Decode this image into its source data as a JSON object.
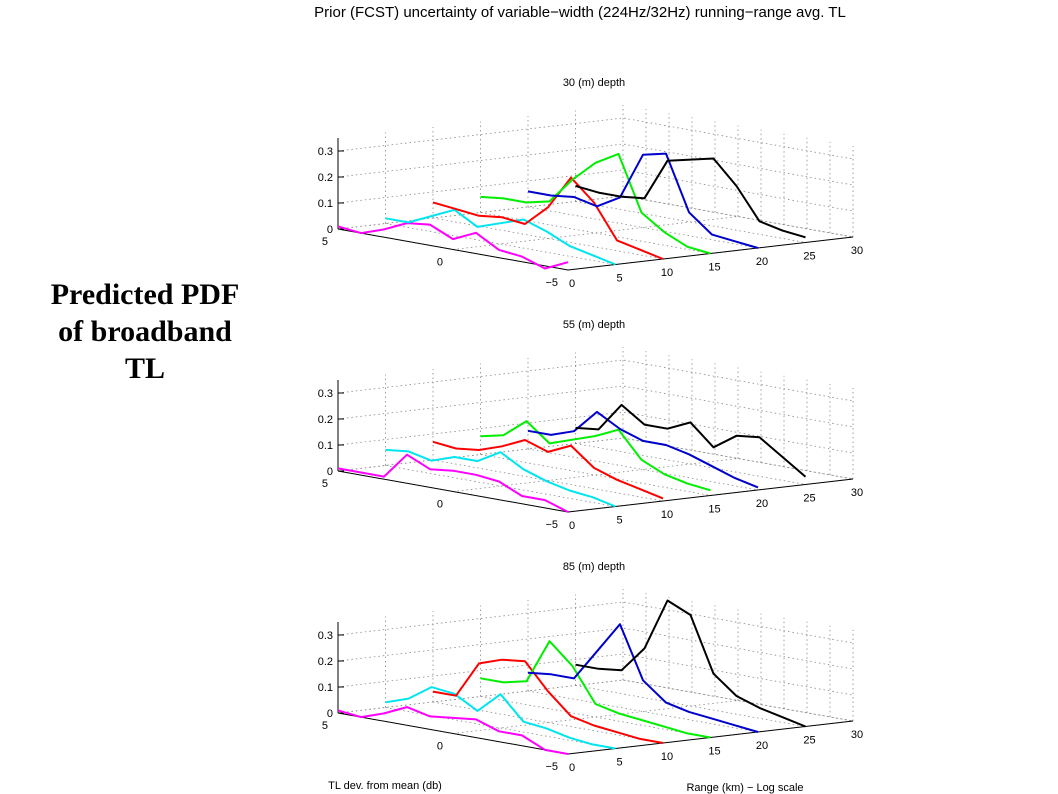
{
  "page": {
    "title": "Prior (FCST) uncertainty of variable−width (224Hz/32Hz) running−range avg. TL",
    "caption_lines": [
      "Predicted PDF",
      "of broadband",
      "TL"
    ]
  },
  "chart_data": [
    {
      "type": "line",
      "title": "30 (m) depth",
      "xlabel": "TL dev. from mean (db)",
      "ylabel": "Range (km) − Log scale",
      "zlabel": "",
      "x_ticks": [
        5,
        0,
        -5
      ],
      "y_ticks": [
        0,
        5,
        10,
        15,
        20,
        25,
        30
      ],
      "z_ticks": [
        0,
        0.1,
        0.2,
        0.3
      ],
      "zlim": [
        0,
        0.35
      ],
      "grid": true,
      "x": [
        5,
        4,
        3,
        2,
        1,
        0,
        -1,
        -2,
        -3,
        -4,
        -5
      ],
      "series": [
        {
          "range": 0,
          "color": "#ff00ff",
          "values": [
            0.01,
            0.0,
            0.03,
            0.07,
            0.08,
            0.04,
            0.08,
            0.03,
            0.02,
            -0.01,
            0.03
          ]
        },
        {
          "range": 5,
          "color": "#00e5ee",
          "values": [
            0.02,
            0.02,
            0.06,
            0.1,
            0.05,
            0.08,
            0.11,
            0.08,
            0.04,
            0.02,
            0.0
          ]
        },
        {
          "range": 10,
          "color": "#ff0000",
          "values": [
            0.06,
            0.05,
            0.04,
            0.05,
            0.04,
            0.12,
            0.25,
            0.17,
            0.04,
            0.02,
            0.0
          ]
        },
        {
          "range": 15,
          "color": "#00ee00",
          "values": [
            0.06,
            0.07,
            0.07,
            0.09,
            0.19,
            0.27,
            0.32,
            0.11,
            0.05,
            0.01,
            0.0
          ]
        },
        {
          "range": 20,
          "color": "#0000cc",
          "values": [
            0.06,
            0.06,
            0.07,
            0.05,
            0.1,
            0.28,
            0.3,
            0.09,
            0.02,
            0.01,
            0.0
          ]
        },
        {
          "range": 25,
          "color": "#000000",
          "values": [
            0.06,
            0.05,
            0.05,
            0.06,
            0.22,
            0.24,
            0.26,
            0.17,
            0.05,
            0.03,
            0.02
          ]
        }
      ]
    },
    {
      "type": "line",
      "title": "55 (m) depth",
      "xlabel": "TL dev. from mean (db)",
      "ylabel": "Range (km) − Log scale",
      "zlabel": "",
      "x_ticks": [
        5,
        0,
        -5
      ],
      "y_ticks": [
        0,
        5,
        10,
        15,
        20,
        25,
        30
      ],
      "z_ticks": [
        0,
        0.1,
        0.2,
        0.3
      ],
      "zlim": [
        0,
        0.35
      ],
      "grid": true,
      "x": [
        5,
        4,
        3,
        2,
        1,
        0,
        -1,
        -2,
        -3,
        -4,
        -5
      ],
      "series": [
        {
          "range": 0,
          "color": "#ff00ff",
          "values": [
            0.01,
            0.01,
            0.01,
            0.11,
            0.07,
            0.08,
            0.08,
            0.07,
            0.03,
            0.03,
            0.0
          ]
        },
        {
          "range": 5,
          "color": "#00e5ee",
          "values": [
            0.06,
            0.07,
            0.05,
            0.08,
            0.08,
            0.13,
            0.08,
            0.05,
            0.03,
            0.02,
            0.0
          ]
        },
        {
          "range": 10,
          "color": "#ff0000",
          "values": [
            0.07,
            0.06,
            0.07,
            0.1,
            0.14,
            0.11,
            0.15,
            0.08,
            0.05,
            0.03,
            0.01
          ]
        },
        {
          "range": 15,
          "color": "#00ee00",
          "values": [
            0.07,
            0.09,
            0.16,
            0.09,
            0.12,
            0.15,
            0.19,
            0.09,
            0.05,
            0.03,
            0.02
          ]
        },
        {
          "range": 20,
          "color": "#0000cc",
          "values": [
            0.07,
            0.07,
            0.1,
            0.19,
            0.14,
            0.11,
            0.11,
            0.09,
            0.06,
            0.03,
            0.01
          ]
        },
        {
          "range": 25,
          "color": "#000000",
          "values": [
            0.06,
            0.07,
            0.18,
            0.12,
            0.12,
            0.16,
            0.08,
            0.14,
            0.15,
            0.09,
            0.03
          ]
        }
      ]
    },
    {
      "type": "line",
      "title": "85 (m) depth",
      "xlabel": "TL dev. from mean (db)",
      "ylabel": "Range (km) − Log scale",
      "zlabel": "",
      "x_ticks": [
        5,
        0,
        -5
      ],
      "y_ticks": [
        0,
        5,
        10,
        15,
        20,
        25,
        30
      ],
      "z_ticks": [
        0,
        0.1,
        0.2,
        0.3
      ],
      "zlim": [
        0,
        0.35
      ],
      "grid": true,
      "x": [
        5,
        4,
        3,
        2,
        1,
        0,
        -1,
        -2,
        -3,
        -4,
        -5
      ],
      "series": [
        {
          "range": 0,
          "color": "#ff00ff",
          "values": [
            0.01,
            0.0,
            0.03,
            0.07,
            0.05,
            0.06,
            0.07,
            0.04,
            0.04,
            0.0,
            0.0
          ]
        },
        {
          "range": 5,
          "color": "#00e5ee",
          "values": [
            0.02,
            0.05,
            0.11,
            0.1,
            0.05,
            0.13,
            0.04,
            0.03,
            0.01,
            0.0,
            0.0
          ]
        },
        {
          "range": 10,
          "color": "#ff0000",
          "values": [
            0.04,
            0.04,
            0.18,
            0.21,
            0.22,
            0.12,
            0.04,
            0.02,
            0.01,
            0.0,
            0.0
          ]
        },
        {
          "range": 15,
          "color": "#00ee00",
          "values": [
            0.07,
            0.07,
            0.09,
            0.26,
            0.18,
            0.05,
            0.03,
            0.02,
            0.01,
            0.0,
            0.0
          ]
        },
        {
          "range": 20,
          "color": "#0000cc",
          "values": [
            0.07,
            0.08,
            0.08,
            0.2,
            0.32,
            0.12,
            0.05,
            0.03,
            0.02,
            0.01,
            0.0
          ]
        },
        {
          "range": 25,
          "color": "#000000",
          "values": [
            0.08,
            0.08,
            0.09,
            0.19,
            0.39,
            0.35,
            0.14,
            0.07,
            0.04,
            0.02,
            0.0
          ]
        }
      ]
    }
  ]
}
